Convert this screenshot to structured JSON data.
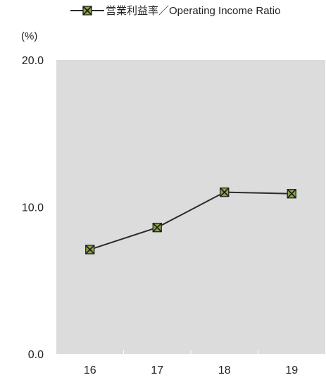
{
  "chart_data": {
    "type": "line",
    "categories": [
      "16",
      "17",
      "18",
      "19"
    ],
    "series": [
      {
        "name": "営業利益率／Operating Income Ratio",
        "values": [
          7.1,
          8.6,
          11.0,
          10.9
        ]
      }
    ],
    "ylabel": "(%)",
    "ylim": [
      0.0,
      20.0
    ],
    "yticks": [
      "0.0",
      "10.0",
      "20.0"
    ],
    "grid": false,
    "legend": "top-right",
    "plot_background": "#dcdcdc",
    "line_color": "#2b2b2b",
    "marker_color": "#8aa444"
  }
}
